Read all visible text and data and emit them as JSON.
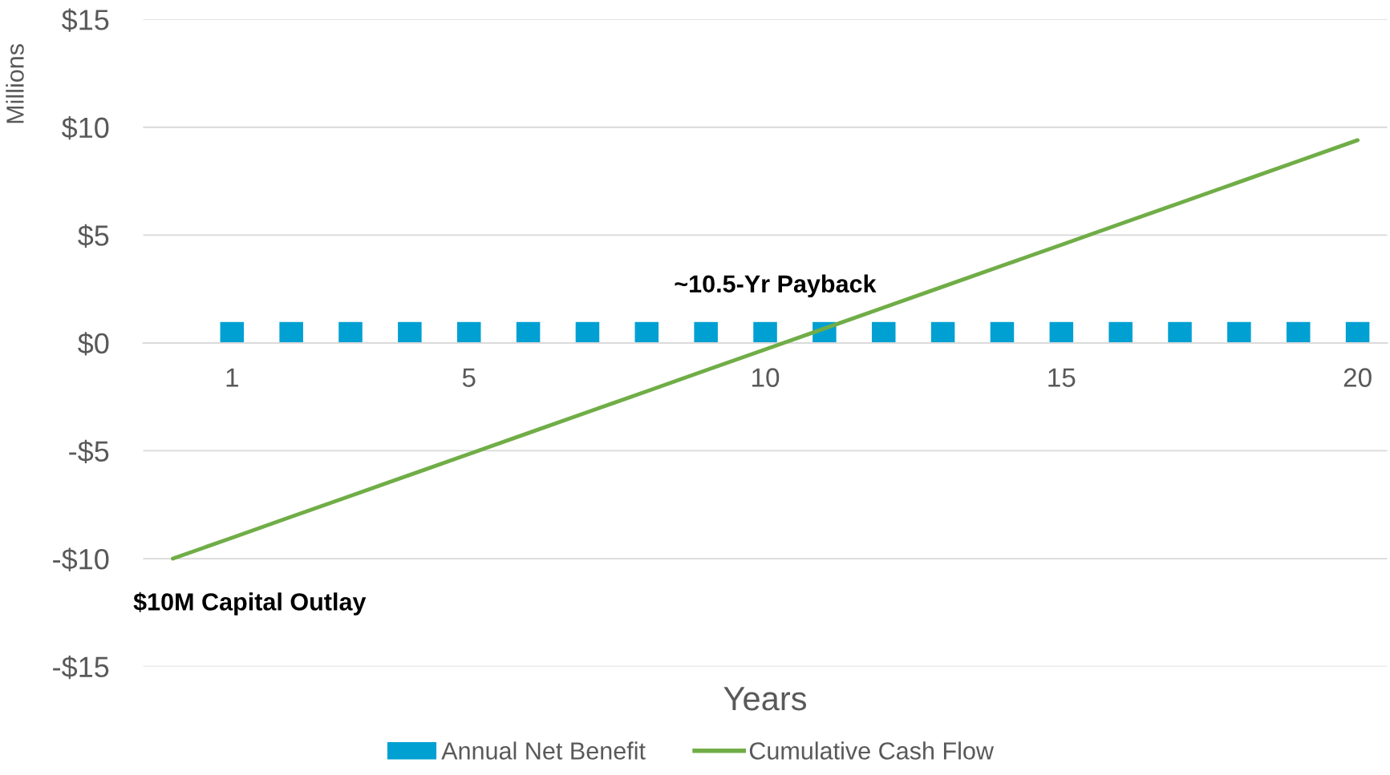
{
  "chart_data": {
    "type": "bar",
    "xlabel": "Years",
    "ylabel": "Millions",
    "categories": [
      null,
      "1",
      null,
      null,
      null,
      "5",
      null,
      null,
      null,
      null,
      "10",
      null,
      null,
      null,
      null,
      "15",
      null,
      null,
      null,
      null,
      "20"
    ],
    "series": [
      {
        "name": "Annual Net Benefit",
        "color": "#00a0d2",
        "values": [
          null,
          0.97,
          0.97,
          0.97,
          0.97,
          0.97,
          0.97,
          0.97,
          0.97,
          0.97,
          0.97,
          0.97,
          0.97,
          0.97,
          0.97,
          0.97,
          0.97,
          0.97,
          0.97,
          0.97,
          0.97
        ]
      },
      {
        "name": "Cumulative Cash Flow",
        "type": "line",
        "color": "#70ad47",
        "values": [
          -10,
          -9.03,
          -8.06,
          -7.09,
          -6.12,
          -5.15,
          -4.18,
          -3.21,
          -2.24,
          -1.27,
          -0.3,
          0.67,
          1.64,
          2.61,
          3.58,
          4.55,
          5.52,
          6.49,
          7.46,
          8.43,
          9.4
        ]
      }
    ],
    "ylim": [
      -15,
      15
    ],
    "yticks": [
      {
        "value": -15,
        "label": "-$15"
      },
      {
        "value": -10,
        "label": "-$10"
      },
      {
        "value": -5,
        "label": "-$5"
      },
      {
        "value": 0,
        "label": "$0"
      },
      {
        "value": 5,
        "label": "$5"
      },
      {
        "value": 10,
        "label": "$10"
      },
      {
        "value": 15,
        "label": "$15"
      }
    ],
    "grid": "y",
    "legend": "bottom",
    "marker": "none",
    "line_style": "solid",
    "annotations": [
      "~10.5-Yr Payback",
      "$10M Capital Outlay"
    ]
  }
}
